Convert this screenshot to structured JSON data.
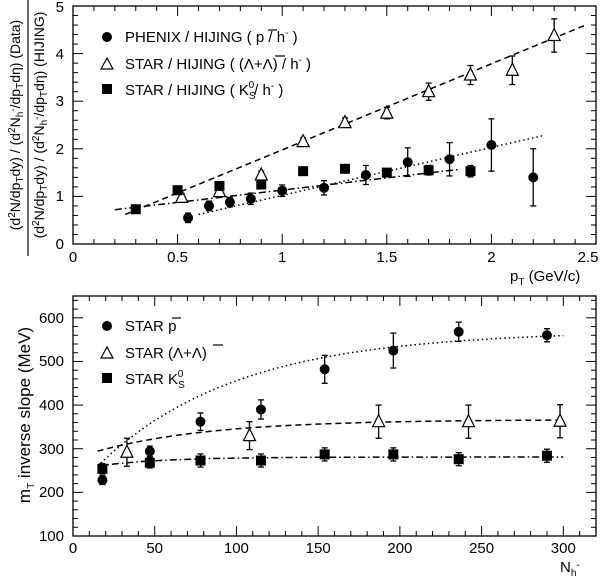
{
  "chart_data": [
    {
      "type": "scatter",
      "title": "",
      "ylabel": "(d²N/dp_T dy) / (d²N_h⁻/dp_T dη) (Data) / (d²N/dp_T dy) / (d²N_h⁻/dp_T dη) (HIJING)",
      "ylabel_parts": {
        "outer_num": "(d",
        "outer_den": "(d",
        "num_a": "2",
        "num_b": "N/dp",
        "num_c": "T",
        "num_d": "dy) / (d",
        "num_e": "2",
        "num_f": "N",
        "num_g": "h",
        "num_h": "-",
        "num_i": "/dp",
        "num_j": "T",
        "num_k": "dη) (Data)",
        "den_a": "2",
        "den_b": "N/dp",
        "den_c": "T",
        "den_d": "dy) / (d",
        "den_e": "2",
        "den_f": "N",
        "den_g": "h",
        "den_h": "-",
        "den_i": "/dp",
        "den_j": "T",
        "den_k": "dη) (HIJING)"
      },
      "xlabel": "p_T (GeV/c)",
      "xlabel_parts": {
        "main": "p",
        "sub": "T",
        "rest": " (GeV/c)"
      },
      "xlim": [
        0,
        2.5
      ],
      "ylim": [
        0,
        5
      ],
      "xticks": [
        "0",
        "0.5",
        "1",
        "1.5",
        "2",
        "2.5"
      ],
      "yticks": [
        "0",
        "1",
        "2",
        "3",
        "4",
        "5"
      ],
      "legend_position": "top-left",
      "legend": [
        {
          "marker": "circle",
          "text_a": "PHENIX / HIJING ( ",
          "text_b": "p",
          "text_c": " / h",
          "text_d": "-",
          "text_e": " )"
        },
        {
          "marker": "triangle-open",
          "text_a": "STAR / HIJING ( (Λ+",
          "text_b": "Λ",
          "text_c": ") / h",
          "text_d": "-",
          "text_e": " )"
        },
        {
          "marker": "square",
          "text_a": "STAR / HIJING ( K",
          "text_b": "S",
          "text_c": "0",
          "text_d": "/ h",
          "text_e": "-",
          "text_f": " )"
        }
      ],
      "series": [
        {
          "marker": "triangle-open",
          "x": [
            0.52,
            0.7,
            0.9,
            1.1,
            1.3,
            1.5,
            1.7,
            1.9,
            2.1,
            2.3
          ],
          "y": [
            0.98,
            1.1,
            1.45,
            2.15,
            2.55,
            2.75,
            3.2,
            3.55,
            3.65,
            4.38
          ],
          "err": [
            0.08,
            0.07,
            0.08,
            0.08,
            0.1,
            0.12,
            0.18,
            0.2,
            0.3,
            0.35
          ]
        },
        {
          "marker": "circle",
          "x": [
            0.55,
            0.65,
            0.75,
            0.85,
            1.0,
            1.2,
            1.4,
            1.6,
            1.8,
            2.0,
            2.2
          ],
          "y": [
            0.55,
            0.8,
            0.88,
            0.95,
            1.12,
            1.18,
            1.45,
            1.72,
            1.78,
            2.08,
            1.4
          ],
          "err": [
            0.1,
            0.1,
            0.1,
            0.12,
            0.12,
            0.15,
            0.2,
            0.3,
            0.35,
            0.55,
            0.6
          ]
        },
        {
          "marker": "square",
          "x": [
            0.3,
            0.5,
            0.7,
            0.9,
            1.1,
            1.3,
            1.5,
            1.7,
            1.9
          ],
          "y": [
            0.73,
            1.13,
            1.22,
            1.25,
            1.53,
            1.58,
            1.5,
            1.55,
            1.53
          ],
          "err": [
            0.02,
            0.03,
            0.04,
            0.05,
            0.06,
            0.08,
            0.08,
            0.1,
            0.12
          ]
        }
      ],
      "fit_lines": [
        {
          "style": "dashed",
          "x": [
            0.25,
            2.45
          ],
          "y": [
            0.62,
            4.6
          ]
        },
        {
          "style": "dotted",
          "x": [
            0.6,
            2.25
          ],
          "y": [
            0.62,
            2.28
          ]
        },
        {
          "style": "dashdot",
          "x": [
            0.2,
            1.85
          ],
          "y": [
            0.72,
            1.57
          ]
        }
      ]
    },
    {
      "type": "scatter",
      "title": "",
      "ylabel": "m_T inverse slope (MeV)",
      "ylabel_parts": {
        "main": "m",
        "sub": "T",
        "rest": " inverse slope (MeV)"
      },
      "xlabel": "N_h⁻",
      "xlabel_parts": {
        "main": "N",
        "sub": "h",
        "sup": "-"
      },
      "xlim": [
        0,
        320
      ],
      "ylim": [
        100,
        650
      ],
      "xticks": [
        "0",
        "50",
        "100",
        "150",
        "200",
        "250",
        "300"
      ],
      "yticks": [
        "100",
        "200",
        "300",
        "400",
        "500",
        "600"
      ],
      "legend_position": "top-left",
      "legend": [
        {
          "marker": "circle",
          "text_a": "STAR ",
          "text_b": "p"
        },
        {
          "marker": "triangle-open",
          "text_a": "STAR (Λ+",
          "text_b": "Λ",
          "text_c": ")"
        },
        {
          "marker": "square",
          "text_a": "STAR K",
          "text_b": "S",
          "text_c": "0"
        }
      ],
      "series": [
        {
          "marker": "circle",
          "x": [
            18,
            47,
            78,
            115,
            154,
            196,
            236,
            290
          ],
          "y": [
            228,
            294,
            362,
            390,
            482,
            525,
            568,
            560
          ],
          "err": [
            10,
            12,
            20,
            22,
            32,
            40,
            22,
            15
          ]
        },
        {
          "marker": "triangle-open",
          "x": [
            33,
            108,
            187,
            242,
            298
          ],
          "y": [
            292,
            330,
            362,
            362,
            363
          ],
          "err": [
            32,
            32,
            38,
            38,
            38
          ]
        },
        {
          "marker": "square",
          "x": [
            18,
            47,
            78,
            115,
            154,
            196,
            236,
            290
          ],
          "y": [
            254,
            268,
            273,
            273,
            287,
            287,
            276,
            284
          ],
          "err": [
            12,
            12,
            15,
            15,
            15,
            15,
            15,
            15
          ]
        }
      ],
      "fit_lines": [
        {
          "style": "dotted",
          "curve": "circle",
          "x0": 15,
          "x1": 300
        },
        {
          "style": "dashed",
          "curve": "triangle",
          "x0": 15,
          "x1": 300
        },
        {
          "style": "dashdot",
          "curve": "square",
          "x0": 15,
          "x1": 300
        }
      ]
    }
  ]
}
